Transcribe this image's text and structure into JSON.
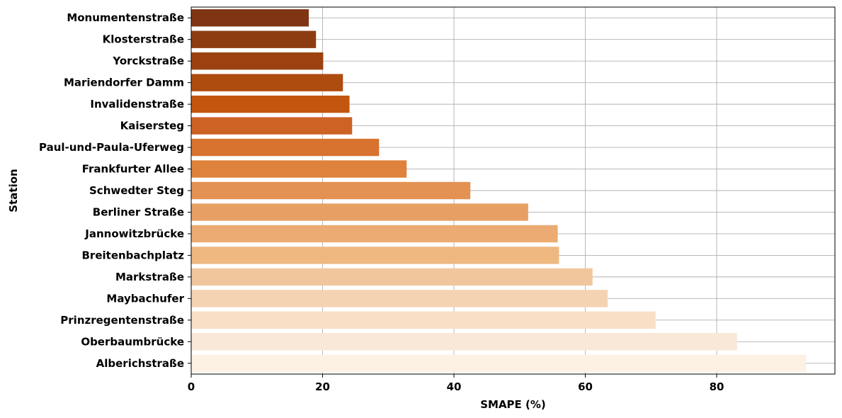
{
  "chart_data": {
    "type": "bar",
    "orientation": "horizontal",
    "title": "",
    "xlabel": "SMAPE (%)",
    "ylabel": "Station",
    "xlim": [
      0,
      98
    ],
    "xticks": [
      0,
      20,
      40,
      60,
      80
    ],
    "grid": true,
    "categories": [
      "Monumentenstraße",
      "Klosterstraße",
      "Yorckstraße",
      "Mariendorfer Damm",
      "Invalidenstraße",
      "Kaisersteg",
      "Paul-und-Paula-Uferweg",
      "Frankfurter Allee",
      "Schwedter Steg",
      "Berliner Straße",
      "Jannowitzbrücke",
      "Breitenbachplatz",
      "Markstraße",
      "Maybachufer",
      "Prinzregentenstraße",
      "Oberbaumbrücke",
      "Alberichstraße"
    ],
    "values": [
      17.9,
      19.0,
      20.1,
      23.1,
      24.1,
      24.5,
      28.6,
      32.8,
      42.5,
      51.3,
      55.8,
      56.0,
      61.1,
      63.4,
      70.7,
      83.1,
      93.6
    ],
    "colors": [
      "#7f3514",
      "#8d3c12",
      "#9b4210",
      "#ae4b0e",
      "#c2560e",
      "#cc6224",
      "#d8722f",
      "#df823c",
      "#e39254",
      "#e7a064",
      "#ebab72",
      "#eeb880",
      "#f1c69d",
      "#f4d3b2",
      "#f8e0c7",
      "#f9e8d8",
      "#fcf1e3"
    ]
  }
}
